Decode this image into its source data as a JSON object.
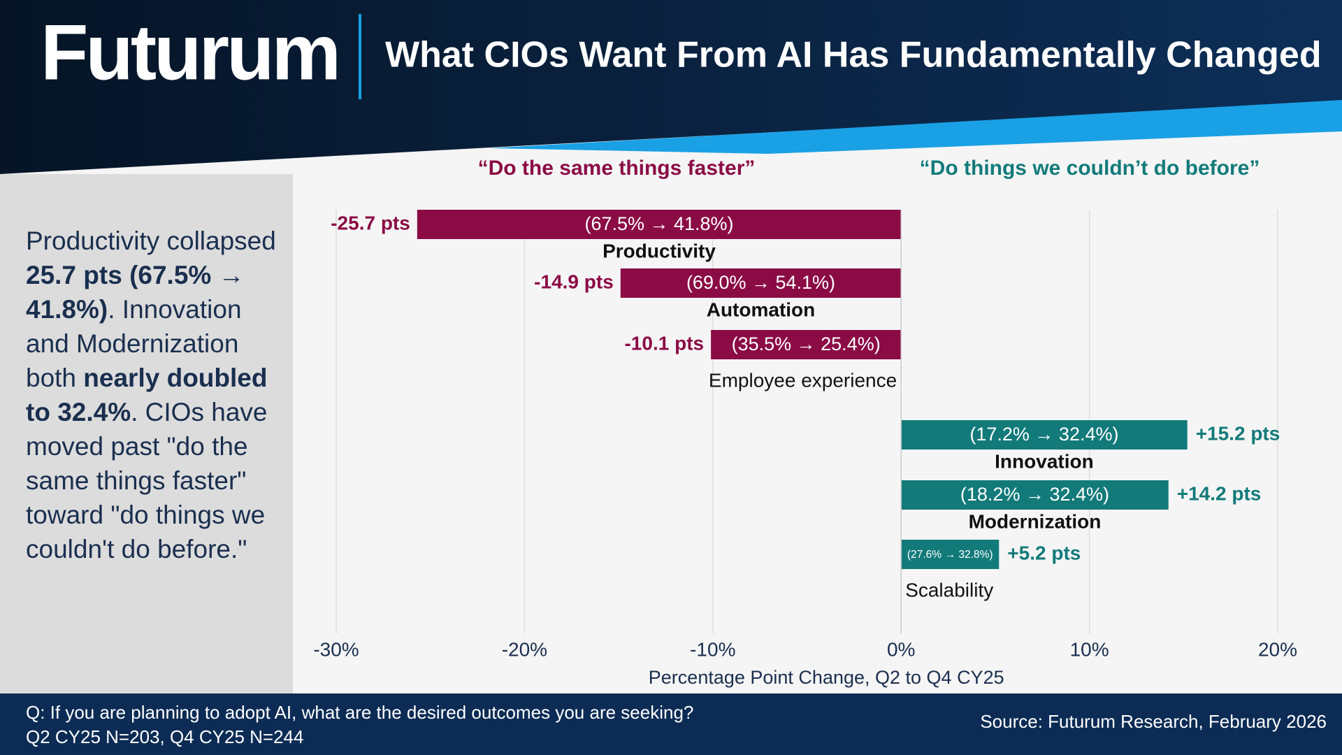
{
  "header": {
    "logo": "Futurum",
    "title": "What CIOs Want From AI Has Fundamentally Changed"
  },
  "sidebar": {
    "segments": [
      {
        "text": "Productivity collapsed ",
        "bold": false
      },
      {
        "text": "25.7 pts (67.5% → 41.8%)",
        "bold": true
      },
      {
        "text": ". Innovation and Modernization both ",
        "bold": false
      },
      {
        "text": "nearly doubled to 32.4%",
        "bold": true
      },
      {
        "text": ". CIOs have moved past \"do the same things faster\" toward \"do things we couldn't do before.\"",
        "bold": false
      }
    ]
  },
  "chart_data": {
    "type": "hbar",
    "group_labels": [
      {
        "text": "“Do the same things faster”",
        "color": "#8b0b45"
      },
      {
        "text": "“Do things we couldn’t do before”",
        "color": "#137a7a"
      }
    ],
    "categories": [
      "Productivity",
      "Automation",
      "Employee experience",
      "Innovation",
      "Modernization",
      "Scalability"
    ],
    "values": [
      -25.7,
      -14.9,
      -10.1,
      15.2,
      14.2,
      5.2
    ],
    "value_labels": [
      "-25.7 pts",
      "-14.9 pts",
      "-10.1 pts",
      "+15.2 pts",
      "+14.2 pts",
      "+5.2 pts"
    ],
    "change_labels": [
      "(67.5% → 41.8%)",
      "(69.0% → 54.1%)",
      "(35.5% → 25.4%)",
      "(17.2% → 32.4%)",
      "(18.2% → 32.4%)",
      "(27.6% → 32.8%)"
    ],
    "colors": [
      "#8b0b45",
      "#8b0b45",
      "#8b0b45",
      "#137a7a",
      "#137a7a",
      "#137a7a"
    ],
    "xlim": [
      -30,
      20
    ],
    "xticks": [
      {
        "value": -30,
        "label": "-30%"
      },
      {
        "value": -20,
        "label": "-20%"
      },
      {
        "value": -10,
        "label": "-10%"
      },
      {
        "value": 0,
        "label": "0%"
      },
      {
        "value": 10,
        "label": "10%"
      },
      {
        "value": 20,
        "label": "20%"
      }
    ],
    "xlabel": "Percentage Point Change, Q2 to Q4 CY25",
    "grid": true
  },
  "footer": {
    "question": "Q: If you are planning to adopt AI, what are the desired outcomes you are seeking?",
    "sample": "Q2 CY25 N=203, Q4 CY25 N=244",
    "source": "Source: Futurum Research, February 2026"
  }
}
